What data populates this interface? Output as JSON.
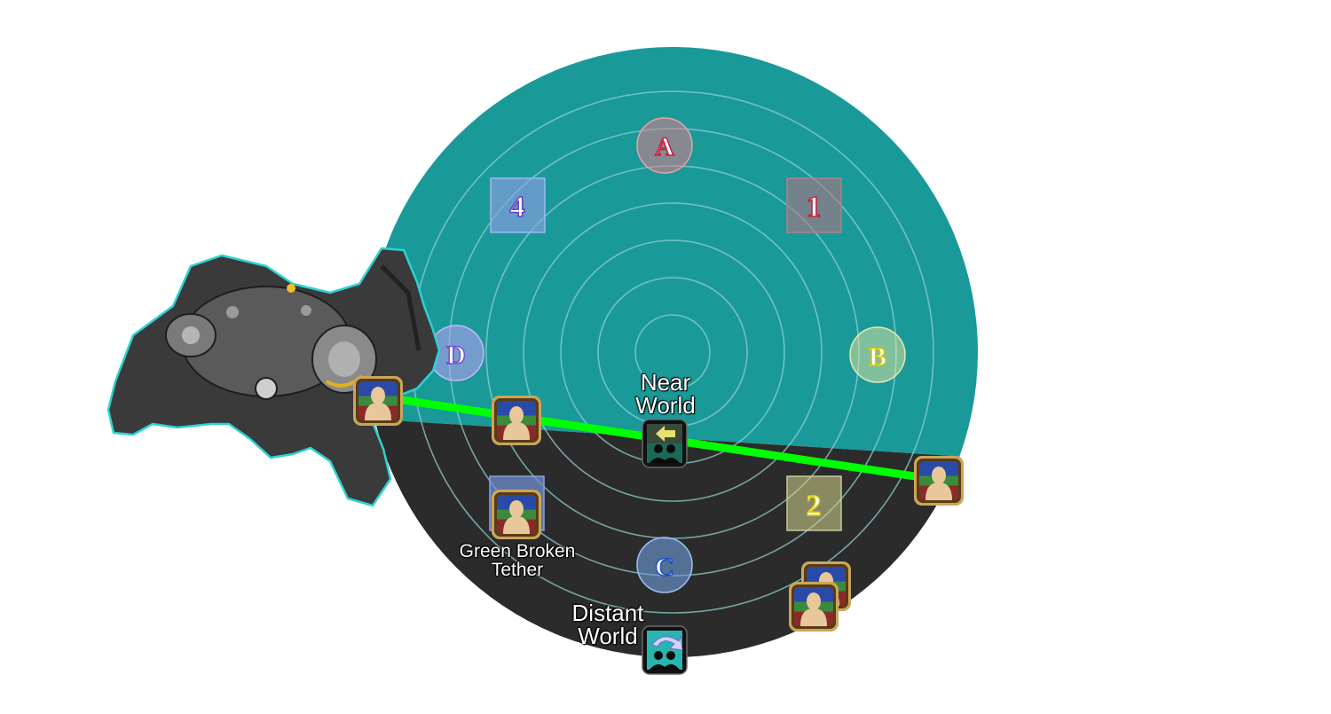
{
  "arena": {
    "top_color": "#1a9999",
    "bottom_color": "#2b2b2b",
    "ring_color": "#8fcfcf",
    "tether_color": "#00ff00"
  },
  "waymarks": {
    "A": "A",
    "B": "B",
    "C": "C",
    "D": "D",
    "one": "1",
    "two": "2",
    "four": "4"
  },
  "labels": {
    "near_world": [
      "Near",
      "World"
    ],
    "distant_world": [
      "Distant",
      "World"
    ],
    "green_broken_tether": [
      "Green Broken",
      "Tether"
    ]
  },
  "icons": {
    "player": "player-role-icon",
    "near_world": "near-world-debuff-icon",
    "distant_world": "distant-world-debuff-icon",
    "boss": "boss-mech-icon"
  }
}
